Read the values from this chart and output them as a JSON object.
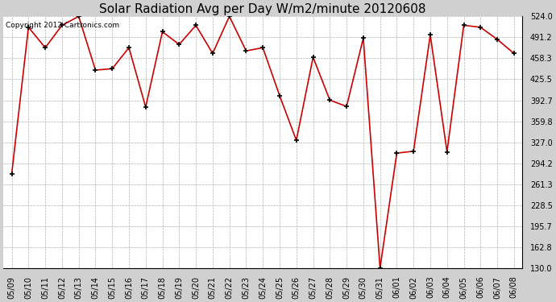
{
  "title": "Solar Radiation Avg per Day W/m2/minute 20120608",
  "copyright": "Copyright 2012 Cartronics.com",
  "dates": [
    "05/09",
    "05/10",
    "05/11",
    "05/12",
    "05/13",
    "05/14",
    "05/15",
    "05/16",
    "05/17",
    "05/18",
    "05/19",
    "05/20",
    "05/21",
    "05/22",
    "05/23",
    "05/24",
    "05/25",
    "05/26",
    "05/27",
    "05/28",
    "05/29",
    "05/30",
    "05/31",
    "06/01",
    "06/02",
    "06/03",
    "06/04",
    "06/05",
    "06/06",
    "06/07",
    "06/08"
  ],
  "values": [
    278,
    507,
    475,
    510,
    524,
    440,
    442,
    475,
    382,
    500,
    480,
    510,
    466,
    524,
    470,
    475,
    400,
    330,
    460,
    393,
    383,
    490,
    130,
    310,
    313,
    495,
    312,
    510,
    507,
    488,
    466
  ],
  "ylim_min": 130,
  "ylim_max": 524,
  "ytick_values": [
    130.0,
    162.8,
    195.7,
    228.5,
    261.3,
    294.2,
    327.0,
    359.8,
    392.7,
    425.5,
    458.3,
    491.2,
    524.0
  ],
  "ytick_labels": [
    "130.0",
    "162.8",
    "195.7",
    "228.5",
    "261.3",
    "294.2",
    "327.0",
    "359.8",
    "392.7",
    "425.5",
    "458.3",
    "491.2",
    "524.0"
  ],
  "line_color": "#cc0000",
  "marker_color": "#000000",
  "outer_bg": "#d0d0d0",
  "plot_bg": "#ffffff",
  "grid_color": "#b0b0b0",
  "title_color": "#000000",
  "title_fontsize": 11,
  "tick_fontsize": 7,
  "copyright_fontsize": 6.5
}
